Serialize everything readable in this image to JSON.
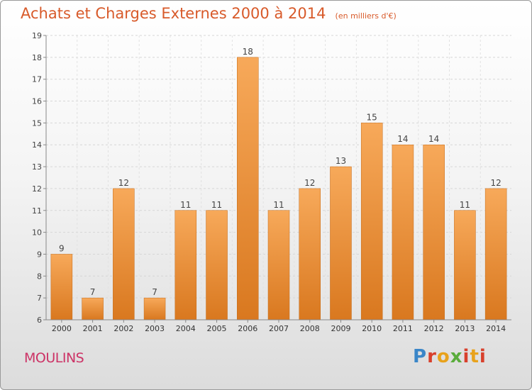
{
  "title": "Achats et Charges Externes 2000 à 2014",
  "subtitle": "(en milliers d'€)",
  "city": "MOULINS",
  "logo_text": "Proxiti",
  "colors": {
    "title": "#d85a2a",
    "city": "#cc3366",
    "bar_top": "#f7a95a",
    "bar_bottom": "#d9781f"
  },
  "chart_data": {
    "type": "bar",
    "categories": [
      "2000",
      "2001",
      "2002",
      "2003",
      "2004",
      "2005",
      "2006",
      "2007",
      "2008",
      "2009",
      "2010",
      "2011",
      "2012",
      "2013",
      "2014"
    ],
    "values": [
      9,
      7,
      12,
      7,
      11,
      11,
      18,
      11,
      12,
      13,
      15,
      14,
      14,
      11,
      12
    ],
    "ylim": [
      6,
      19
    ],
    "yticks": [
      6,
      7,
      8,
      9,
      10,
      11,
      12,
      13,
      14,
      15,
      16,
      17,
      18,
      19
    ],
    "grid": true
  }
}
